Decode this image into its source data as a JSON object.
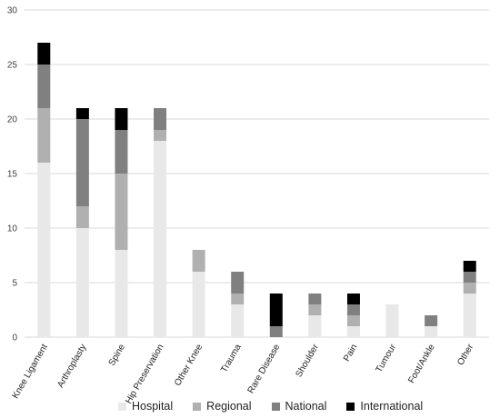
{
  "chart_data": {
    "type": "bar",
    "stacked": true,
    "title": "",
    "xlabel": "",
    "ylabel": "",
    "ylim": [
      0,
      30
    ],
    "yticks": [
      0,
      5,
      10,
      15,
      20,
      25,
      30
    ],
    "grid": "horizontal",
    "legend_position": "bottom",
    "categories": [
      "Knee Ligament",
      "Arthroplasty",
      "Spine",
      "Hip Preservation",
      "Other Knee",
      "Trauma",
      "Rare Disease",
      "Shoulder",
      "Pain",
      "Tumour",
      "Foot/Ankle",
      "Other"
    ],
    "series": [
      {
        "name": "Hospital",
        "color": "#e8e8e8",
        "values": [
          16,
          10,
          8,
          18,
          6,
          3,
          0,
          2,
          1,
          3,
          1,
          4
        ]
      },
      {
        "name": "Regional",
        "color": "#b0b0b0",
        "values": [
          5,
          2,
          7,
          1,
          2,
          1,
          0,
          1,
          1,
          0,
          0,
          1
        ]
      },
      {
        "name": "National",
        "color": "#808080",
        "values": [
          4,
          8,
          4,
          2,
          0,
          2,
          1,
          1,
          1,
          0,
          1,
          1
        ]
      },
      {
        "name": "International",
        "color": "#000000",
        "values": [
          2,
          1,
          2,
          0,
          0,
          0,
          3,
          0,
          1,
          0,
          0,
          1
        ]
      }
    ]
  }
}
